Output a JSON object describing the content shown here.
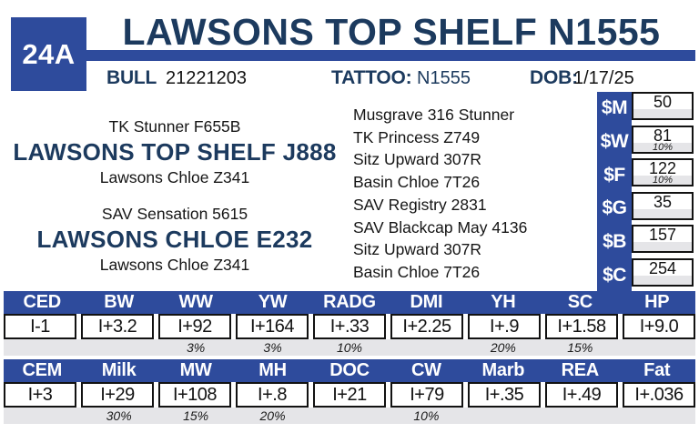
{
  "header": {
    "lot": "24A",
    "title": "LAWSONS TOP SHELF N1555",
    "sex_label": "BULL",
    "reg_number": "21221203",
    "tattoo_label": "TATTOO:",
    "tattoo_value": "N1555",
    "dob_label": "DOB:",
    "dob_value": "1/17/25"
  },
  "pedigree": {
    "sire": {
      "top": "TK Stunner F655B",
      "name": "LAWSONS TOP SHELF J888",
      "bottom": "Lawsons Chloe Z341"
    },
    "dam": {
      "top": "SAV Sensation 5615",
      "name": "LAWSONS CHLOE E232",
      "bottom": "Lawsons Chloe Z341"
    },
    "ancestors": [
      "Musgrave 316 Stunner",
      "TK Princess Z749",
      "Sitz Upward 307R",
      "Basin Chloe 7T26",
      "SAV Registry 2831",
      "SAV Blackcap May 4136",
      "Sitz Upward 307R",
      "Basin Chloe 7T26"
    ]
  },
  "dollar_values": {
    "rows": [
      {
        "label": "$M",
        "value": "50",
        "pct": ""
      },
      {
        "label": "$W",
        "value": "81",
        "pct": "10%"
      },
      {
        "label": "$F",
        "value": "122",
        "pct": "10%"
      },
      {
        "label": "$G",
        "value": "35",
        "pct": ""
      },
      {
        "label": "$B",
        "value": "157",
        "pct": ""
      },
      {
        "label": "$C",
        "value": "254",
        "pct": ""
      }
    ]
  },
  "epd_tables": [
    {
      "headers": [
        "CED",
        "BW",
        "WW",
        "YW",
        "RADG",
        "DMI",
        "YH",
        "SC",
        "HP"
      ],
      "values": [
        "I-1",
        "I+3.2",
        "I+92",
        "I+164",
        "I+.33",
        "I+2.25",
        "I+.9",
        "I+1.58",
        "I+9.0"
      ],
      "percents": [
        "",
        "",
        "3%",
        "3%",
        "10%",
        "",
        "20%",
        "15%",
        ""
      ]
    },
    {
      "headers": [
        "CEM",
        "Milk",
        "MW",
        "MH",
        "DOC",
        "CW",
        "Marb",
        "REA",
        "Fat"
      ],
      "values": [
        "I+3",
        "I+29",
        "I+108",
        "I+.8",
        "I+21",
        "I+79",
        "I+.35",
        "I+.49",
        "I+.036"
      ],
      "percents": [
        "",
        "30%",
        "15%",
        "20%",
        "",
        "10%",
        "",
        "",
        ""
      ]
    }
  ],
  "colors": {
    "accent_blue": "#2e4b9c",
    "navy_text": "#1c3a5e",
    "percent_strip_gray": "#e5e5e8"
  }
}
